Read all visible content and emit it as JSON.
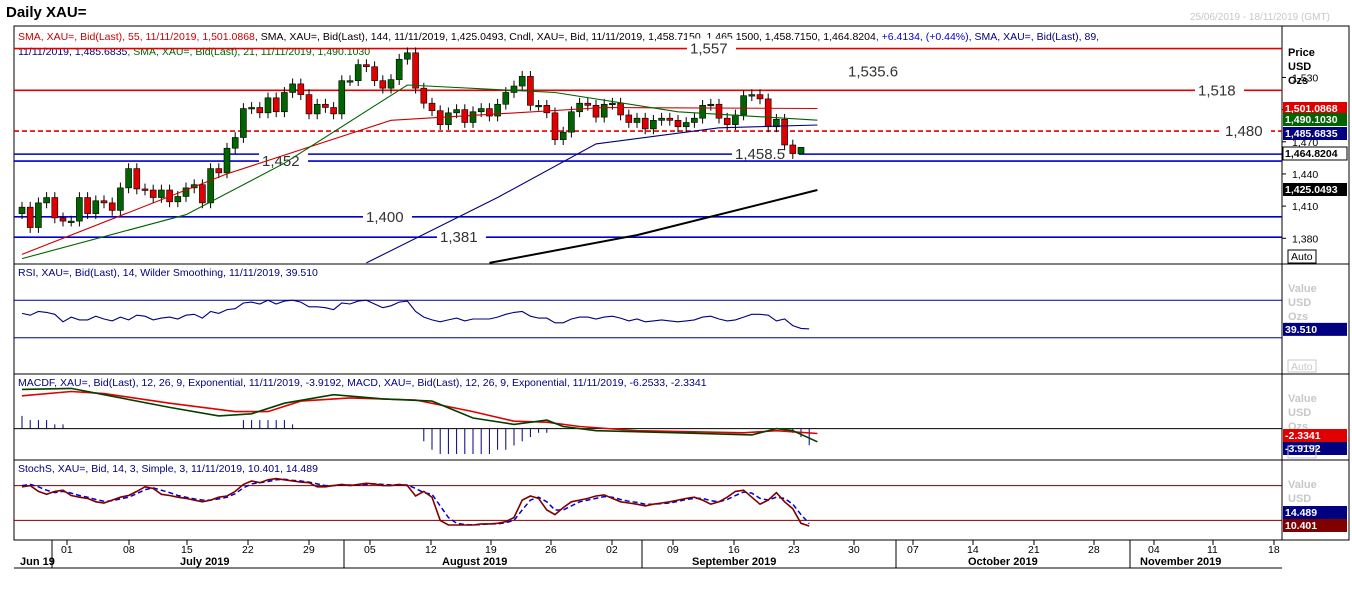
{
  "window": {
    "title": "Daily XAU=",
    "date_range": "25/06/2019 - 18/11/2019 (GMT)"
  },
  "price_panel": {
    "legend_line1": [
      {
        "text": "SMA, XAU=, Bid(Last), 55, 11/11/2019, 1,501.0868",
        "color": "#cc0000"
      },
      {
        "text": ", SMA, XAU=, Bid(Last), 144, 11/11/2019, 1,425.0493",
        "color": "#000000"
      },
      {
        "text": ", Cndl, XAU=, Bid, 11/11/2019, 1,458.7150, 1,465.1500, 1,458.7150, 1,464.8204",
        "color": "#000000"
      },
      {
        "text": ", +6.4134, (+0.44%)",
        "color": "#0000cc"
      },
      {
        "text": ", SMA, XAU=, Bid(Last), 89,",
        "color": "#000080"
      }
    ],
    "legend_line2": [
      {
        "text": "11/11/2019, 1,485.6835",
        "color": "#000080"
      },
      {
        "text": ", SMA, XAU=, Bid(Last), 21, 11/11/2019, 1,490.1030",
        "color": "#006400"
      }
    ],
    "axis_header": [
      "Price",
      "USD",
      "Ozs"
    ],
    "y_ticks": [
      "1,530",
      "1,500",
      "1,470",
      "1,440",
      "1,410",
      "1,380"
    ],
    "scale_button": "Auto",
    "price_tags": [
      {
        "label": "1,501.0868",
        "bg": "#e00000",
        "fg": "#ffffff"
      },
      {
        "label": "1,490.1030",
        "bg": "#006400",
        "fg": "#ffffff"
      },
      {
        "label": "1,485.6835",
        "bg": "#000080",
        "fg": "#ffffff"
      },
      {
        "label": "1,464.8204",
        "bg": "#ffffff",
        "fg": "#000000"
      },
      {
        "label": "1,425.0493",
        "bg": "#000000",
        "fg": "#ffffff"
      }
    ]
  },
  "rsi_panel": {
    "legend": "RSI, XAU=, Bid(Last), 14, Wilder Smoothing, 11/11/2019, 39.510",
    "axis_header": [
      "Value",
      "USD",
      "Ozs"
    ],
    "tag": "39.510",
    "scale_button": "Auto"
  },
  "macd_panel": {
    "legend": "MACDF, XAU=, Bid(Last), 12, 26, 9, Exponential, 11/11/2019, -3.9192, MACD, XAU=, Bid(Last), 12, 26, 9, Exponential, 11/11/2019, -6.2533, -2.3341",
    "axis_header": [
      "Value",
      "USD",
      "Ozs"
    ],
    "tags": [
      {
        "label": "-2.3341",
        "bg": "#e00000",
        "fg": "#ffffff"
      },
      {
        "label": "-3.9192",
        "bg": "#000080",
        "fg": "#ffffff"
      }
    ],
    "scale_button": "Auto"
  },
  "stoch_panel": {
    "legend": "StochS, XAU=, Bid, 14, 3, Simple, 3, 11/11/2019, 10.401, 14.489",
    "axis_header": [
      "Value",
      "USD",
      "Ozs"
    ],
    "tags": [
      {
        "label": "14.489",
        "bg": "#000080",
        "fg": "#ffffff"
      },
      {
        "label": "10.401",
        "bg": "#800000",
        "fg": "#ffffff"
      }
    ]
  },
  "x_axis": {
    "day_ticks": [
      "01",
      "08",
      "15",
      "22",
      "29",
      "05",
      "12",
      "19",
      "26",
      "02",
      "09",
      "16",
      "23",
      "30",
      "07",
      "14",
      "21",
      "28",
      "04",
      "11",
      "18"
    ],
    "month_labels": [
      "Jun 19",
      "July 2019",
      "August 2019",
      "September 2019",
      "October 2019",
      "November 2019"
    ]
  },
  "chart_data": {
    "type": "candlestick",
    "title": "Daily XAU=",
    "ylabel": "Price USD Ozs",
    "ylim": [
      1356,
      1578
    ],
    "horizontal_levels": [
      {
        "value": 1557,
        "label": "1,557",
        "color": "#e00000",
        "style": "solid"
      },
      {
        "value": 1535.6,
        "label": "1,535.6",
        "color": "#e00000",
        "style": "none"
      },
      {
        "value": 1518,
        "label": "1,518",
        "color": "#e00000",
        "style": "solid"
      },
      {
        "value": 1480,
        "label": "1,480",
        "color": "#e00000",
        "style": "dashed"
      },
      {
        "value": 1458.5,
        "label": "1,458.5",
        "color": "#0000cc",
        "style": "solid"
      },
      {
        "value": 1452,
        "label": "1,452",
        "color": "#0000cc",
        "style": "solid"
      },
      {
        "value": 1400,
        "label": "1,400",
        "color": "#0000cc",
        "style": "solid"
      },
      {
        "value": 1381,
        "label": "1,381",
        "color": "#0000cc",
        "style": "solid"
      }
    ],
    "candles": [
      {
        "date": "2019-06-28",
        "close": 1409
      },
      {
        "date": "2019-07-01",
        "close": 1390
      },
      {
        "date": "2019-07-02",
        "close": 1413
      },
      {
        "date": "2019-07-03",
        "close": 1418
      },
      {
        "date": "2019-07-05",
        "close": 1399
      },
      {
        "date": "2019-07-08",
        "close": 1396
      },
      {
        "date": "2019-07-09",
        "close": 1396
      },
      {
        "date": "2019-07-10",
        "close": 1418
      },
      {
        "date": "2019-07-11",
        "close": 1403
      },
      {
        "date": "2019-07-12",
        "close": 1415
      },
      {
        "date": "2019-07-15",
        "close": 1413
      },
      {
        "date": "2019-07-16",
        "close": 1406
      },
      {
        "date": "2019-07-17",
        "close": 1427
      },
      {
        "date": "2019-07-18",
        "close": 1445
      },
      {
        "date": "2019-07-19",
        "close": 1426
      },
      {
        "date": "2019-07-22",
        "close": 1425
      },
      {
        "date": "2019-07-23",
        "close": 1418
      },
      {
        "date": "2019-07-24",
        "close": 1425
      },
      {
        "date": "2019-07-25",
        "close": 1414
      },
      {
        "date": "2019-07-26",
        "close": 1419
      },
      {
        "date": "2019-07-29",
        "close": 1427
      },
      {
        "date": "2019-07-30",
        "close": 1430
      },
      {
        "date": "2019-07-31",
        "close": 1413
      },
      {
        "date": "2019-08-01",
        "close": 1445
      },
      {
        "date": "2019-08-02",
        "close": 1441
      },
      {
        "date": "2019-08-05",
        "close": 1464
      },
      {
        "date": "2019-08-06",
        "close": 1474
      },
      {
        "date": "2019-08-07",
        "close": 1501
      },
      {
        "date": "2019-08-08",
        "close": 1502
      },
      {
        "date": "2019-08-09",
        "close": 1497
      },
      {
        "date": "2019-08-12",
        "close": 1511
      },
      {
        "date": "2019-08-13",
        "close": 1498
      },
      {
        "date": "2019-08-14",
        "close": 1516
      },
      {
        "date": "2019-08-15",
        "close": 1524
      },
      {
        "date": "2019-08-16",
        "close": 1514
      },
      {
        "date": "2019-08-19",
        "close": 1496
      },
      {
        "date": "2019-08-20",
        "close": 1505
      },
      {
        "date": "2019-08-21",
        "close": 1502
      },
      {
        "date": "2019-08-22",
        "close": 1496
      },
      {
        "date": "2019-08-23",
        "close": 1527
      },
      {
        "date": "2019-08-26",
        "close": 1527
      },
      {
        "date": "2019-08-27",
        "close": 1542
      },
      {
        "date": "2019-08-28",
        "close": 1540
      },
      {
        "date": "2019-08-29",
        "close": 1527
      },
      {
        "date": "2019-08-30",
        "close": 1520
      },
      {
        "date": "2019-09-02",
        "close": 1528
      },
      {
        "date": "2019-09-03",
        "close": 1547
      },
      {
        "date": "2019-09-04",
        "close": 1553
      },
      {
        "date": "2019-09-05",
        "close": 1520
      },
      {
        "date": "2019-09-06",
        "close": 1506
      },
      {
        "date": "2019-09-09",
        "close": 1499
      },
      {
        "date": "2019-09-10",
        "close": 1486
      },
      {
        "date": "2019-09-11",
        "close": 1497
      },
      {
        "date": "2019-09-12",
        "close": 1500
      },
      {
        "date": "2019-09-13",
        "close": 1488
      },
      {
        "date": "2019-09-16",
        "close": 1498
      },
      {
        "date": "2019-09-17",
        "close": 1501
      },
      {
        "date": "2019-09-18",
        "close": 1494
      },
      {
        "date": "2019-09-19",
        "close": 1505
      },
      {
        "date": "2019-09-20",
        "close": 1516
      },
      {
        "date": "2019-09-23",
        "close": 1522
      },
      {
        "date": "2019-09-24",
        "close": 1531
      },
      {
        "date": "2019-09-25",
        "close": 1504
      },
      {
        "date": "2019-09-26",
        "close": 1504
      },
      {
        "date": "2019-09-27",
        "close": 1497
      },
      {
        "date": "2019-09-30",
        "close": 1472
      },
      {
        "date": "2019-10-01",
        "close": 1479
      },
      {
        "date": "2019-10-02",
        "close": 1498
      },
      {
        "date": "2019-10-03",
        "close": 1506
      },
      {
        "date": "2019-10-04",
        "close": 1504
      },
      {
        "date": "2019-10-07",
        "close": 1493
      },
      {
        "date": "2019-10-08",
        "close": 1505
      },
      {
        "date": "2019-10-09",
        "close": 1506
      },
      {
        "date": "2019-10-10",
        "close": 1495
      },
      {
        "date": "2019-10-11",
        "close": 1488
      },
      {
        "date": "2019-10-14",
        "close": 1492
      },
      {
        "date": "2019-10-15",
        "close": 1482
      },
      {
        "date": "2019-10-16",
        "close": 1490
      },
      {
        "date": "2019-10-17",
        "close": 1492
      },
      {
        "date": "2019-10-18",
        "close": 1490
      },
      {
        "date": "2019-10-21",
        "close": 1484
      },
      {
        "date": "2019-10-22",
        "close": 1488
      },
      {
        "date": "2019-10-23",
        "close": 1492
      },
      {
        "date": "2019-10-24",
        "close": 1504
      },
      {
        "date": "2019-10-25",
        "close": 1505
      },
      {
        "date": "2019-10-28",
        "close": 1492
      },
      {
        "date": "2019-10-29",
        "close": 1486
      },
      {
        "date": "2019-10-30",
        "close": 1495
      },
      {
        "date": "2019-10-31",
        "close": 1513
      },
      {
        "date": "2019-11-01",
        "close": 1514
      },
      {
        "date": "2019-11-04",
        "close": 1510
      },
      {
        "date": "2019-11-05",
        "close": 1484
      },
      {
        "date": "2019-11-06",
        "close": 1491
      },
      {
        "date": "2019-11-07",
        "close": 1467
      },
      {
        "date": "2019-11-08",
        "close": 1459
      },
      {
        "date": "2019-11-11",
        "open": 1458.715,
        "high": 1465.15,
        "low": 1458.715,
        "close": 1464.8204
      }
    ],
    "series": [
      {
        "name": "SMA 55",
        "color": "#cc0000",
        "last": 1501.0868,
        "values": [
          [
            0,
            1365
          ],
          [
            25,
            1440
          ],
          [
            45,
            1490
          ],
          [
            71,
            1502
          ],
          [
            97,
            1501.09
          ]
        ]
      },
      {
        "name": "SMA 144",
        "color": "#000000",
        "last": 1425.0493,
        "values": [
          [
            57,
            1357
          ],
          [
            75,
            1383
          ],
          [
            97,
            1425.05
          ]
        ]
      },
      {
        "name": "SMA 89",
        "color": "#000080",
        "last": 1485.6835,
        "values": [
          [
            42,
            1357
          ],
          [
            58,
            1418
          ],
          [
            70,
            1468
          ],
          [
            85,
            1483
          ],
          [
            97,
            1485.68
          ]
        ]
      },
      {
        "name": "SMA 21",
        "color": "#006400",
        "last": 1490.103,
        "values": [
          [
            0,
            1361
          ],
          [
            20,
            1402
          ],
          [
            32,
            1450
          ],
          [
            47,
            1523
          ],
          [
            65,
            1516
          ],
          [
            80,
            1498
          ],
          [
            97,
            1490.1
          ]
        ]
      }
    ],
    "rsi": {
      "ylim": [
        0,
        100
      ],
      "levels": [
        70,
        30
      ],
      "last": 39.51,
      "values": [
        56,
        54,
        58,
        57,
        55,
        47,
        52,
        49,
        49,
        53,
        50,
        48,
        52,
        49,
        54,
        53,
        49,
        51,
        52,
        50,
        54,
        55,
        51,
        58,
        56,
        60,
        61,
        67,
        68,
        66,
        70,
        66,
        69,
        70,
        68,
        63,
        63,
        62,
        60,
        67,
        66,
        69,
        70,
        66,
        62,
        64,
        68,
        69,
        58,
        52,
        49,
        47,
        49,
        51,
        48,
        50,
        50,
        50,
        52,
        55,
        57,
        58,
        53,
        51,
        51,
        46,
        46,
        50,
        52,
        52,
        50,
        52,
        53,
        51,
        48,
        50,
        47,
        48,
        49,
        48,
        47,
        48,
        49,
        52,
        53,
        50,
        48,
        49,
        52,
        55,
        55,
        54,
        48,
        50,
        43,
        40,
        39.51
      ]
    },
    "macd": {
      "ylim": [
        -12,
        22
      ],
      "last_macd": -6.2533,
      "last_signal": -2.3341,
      "last_hist": -3.9192,
      "macd_values": [
        [
          0,
          18.5
        ],
        [
          6,
          19
        ],
        [
          10,
          16
        ],
        [
          18,
          10
        ],
        [
          24,
          6
        ],
        [
          28,
          7
        ],
        [
          32,
          12
        ],
        [
          38,
          16
        ],
        [
          44,
          14
        ],
        [
          50,
          13
        ],
        [
          55,
          5
        ],
        [
          60,
          2
        ],
        [
          64,
          4
        ],
        [
          66,
          1
        ],
        [
          70,
          -1
        ],
        [
          80,
          -2
        ],
        [
          89,
          -3
        ],
        [
          92,
          0
        ],
        [
          94,
          -1
        ],
        [
          97,
          -6.25
        ]
      ],
      "signal_values": [
        [
          0,
          15.5
        ],
        [
          6,
          17.5
        ],
        [
          10,
          16.5
        ],
        [
          18,
          12
        ],
        [
          26,
          8
        ],
        [
          30,
          8
        ],
        [
          34,
          13
        ],
        [
          40,
          14.5
        ],
        [
          48,
          13.5
        ],
        [
          55,
          8
        ],
        [
          60,
          3.5
        ],
        [
          64,
          3
        ],
        [
          68,
          1
        ],
        [
          75,
          -1
        ],
        [
          88,
          -2
        ],
        [
          92,
          -1
        ],
        [
          97,
          -2.33
        ]
      ],
      "histogram": [
        3,
        2,
        2,
        2,
        1,
        1,
        0,
        0,
        0,
        0,
        0,
        0,
        0,
        0,
        0,
        0,
        0,
        0,
        0,
        0,
        0,
        0,
        0,
        0,
        0,
        0,
        0,
        2,
        2,
        2,
        2,
        2,
        2,
        1,
        0,
        0,
        0,
        0,
        0,
        0,
        0,
        0,
        0,
        0,
        0,
        0,
        0,
        0,
        0,
        -3,
        -5,
        -6,
        -6,
        -6,
        -6,
        -6,
        -6,
        -6,
        -5,
        -5,
        -4,
        -3,
        -2,
        -1,
        -1,
        0,
        0,
        0,
        0,
        0,
        0,
        0,
        0,
        0,
        0,
        0,
        0,
        0,
        0,
        0,
        0,
        0,
        0,
        0,
        0,
        0,
        0,
        0,
        0,
        0,
        0,
        0,
        0,
        0,
        -1,
        -2,
        -3.92
      ]
    },
    "stochastic": {
      "ylim": [
        0,
        100
      ],
      "levels": [
        80,
        20
      ],
      "last_k": 10.401,
      "last_d": 14.489,
      "k_values": [
        78,
        80,
        70,
        65,
        70,
        72,
        63,
        60,
        58,
        52,
        50,
        55,
        60,
        63,
        70,
        78,
        75,
        65,
        63,
        60,
        58,
        55,
        52,
        55,
        60,
        62,
        70,
        82,
        88,
        85,
        90,
        92,
        90,
        88,
        86,
        85,
        78,
        78,
        80,
        82,
        80,
        82,
        84,
        83,
        80,
        80,
        82,
        80,
        62,
        70,
        60,
        20,
        12,
        12,
        12,
        12,
        14,
        14,
        15,
        18,
        25,
        55,
        62,
        58,
        38,
        30,
        42,
        52,
        55,
        58,
        62,
        64,
        58,
        52,
        50,
        48,
        45,
        48,
        50,
        52,
        55,
        58,
        60,
        55,
        48,
        52,
        60,
        70,
        72,
        60,
        48,
        55,
        68,
        52,
        40,
        15,
        10.4
      ],
      "d_values": [
        80,
        82,
        78,
        72,
        68,
        70,
        67,
        63,
        60,
        56,
        53,
        54,
        57,
        60,
        66,
        73,
        76,
        72,
        68,
        63,
        60,
        57,
        55,
        55,
        57,
        60,
        66,
        76,
        83,
        85,
        87,
        90,
        91,
        89,
        88,
        86,
        83,
        80,
        80,
        81,
        81,
        81,
        82,
        83,
        82,
        81,
        81,
        81,
        75,
        68,
        65,
        45,
        25,
        15,
        13,
        12,
        13,
        14,
        14,
        16,
        20,
        38,
        55,
        60,
        52,
        38,
        38,
        45,
        52,
        55,
        58,
        61,
        60,
        56,
        53,
        51,
        48,
        48,
        49,
        50,
        53,
        56,
        58,
        58,
        54,
        52,
        56,
        63,
        69,
        67,
        58,
        55,
        60,
        58,
        48,
        30,
        14.5
      ]
    }
  }
}
